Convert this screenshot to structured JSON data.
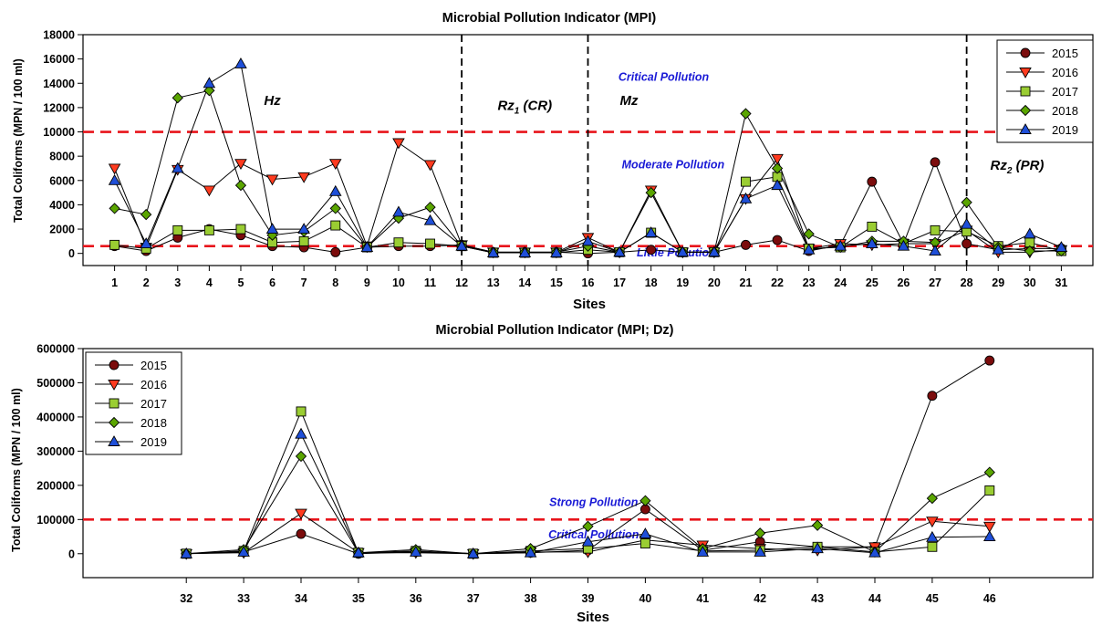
{
  "figure_title": "Microbial Pollution Indicator (MPI)",
  "chart_data": [
    {
      "type": "line",
      "title": "Microbial Pollution Indicator (MPI)",
      "xlabel": "Sites",
      "ylabel": "Total Coliforms (MPN / 100 ml)",
      "ylim": [
        -1000,
        18000
      ],
      "yticks": [
        0,
        2000,
        4000,
        6000,
        8000,
        10000,
        12000,
        14000,
        16000,
        18000
      ],
      "ytick_labels": [
        "0",
        "2000",
        "4000",
        "6000",
        "8000",
        "10000",
        "12000",
        "14000",
        "16000",
        "18000"
      ],
      "x": [
        1,
        2,
        3,
        4,
        5,
        6,
        7,
        8,
        9,
        10,
        11,
        12,
        13,
        14,
        15,
        16,
        17,
        18,
        19,
        20,
        21,
        22,
        23,
        24,
        25,
        26,
        27,
        28,
        29,
        30,
        31
      ],
      "grid": false,
      "legend_position": "top-right",
      "series": [
        {
          "name": "2015",
          "color": "#7b0c0c",
          "marker": "circle",
          "values": [
            600,
            200,
            1300,
            2000,
            1500,
            600,
            500,
            100,
            500,
            600,
            600,
            700,
            100,
            100,
            100,
            0,
            100,
            300,
            100,
            100,
            700,
            1100,
            200,
            700,
            5900,
            800,
            7500,
            800,
            300,
            400,
            400
          ]
        },
        {
          "name": "2016",
          "color": "#ff3b1f",
          "marker": "triangle-down",
          "values": [
            7000,
            500,
            6900,
            5200,
            7400,
            6100,
            6300,
            7400,
            600,
            9100,
            7300,
            700,
            100,
            100,
            100,
            1300,
            100,
            5200,
            100,
            100,
            4500,
            7800,
            400,
            800,
            700,
            800,
            800,
            1900,
            100,
            100,
            300
          ]
        },
        {
          "name": "2017",
          "color": "#9acd32",
          "marker": "square",
          "values": [
            700,
            400,
            1900,
            1900,
            2000,
            900,
            1000,
            2300,
            500,
            900,
            800,
            600,
            50,
            50,
            50,
            300,
            100,
            1700,
            100,
            100,
            5900,
            6300,
            400,
            500,
            2200,
            800,
            1900,
            1800,
            600,
            900,
            200
          ]
        },
        {
          "name": "2018",
          "color": "#5aa500",
          "marker": "diamond",
          "values": [
            3700,
            3200,
            12800,
            13400,
            5600,
            1500,
            1800,
            3700,
            500,
            2900,
            3800,
            600,
            100,
            100,
            100,
            600,
            100,
            5000,
            100,
            100,
            11500,
            7000,
            1600,
            500,
            1000,
            1000,
            900,
            4200,
            500,
            200,
            200
          ]
        },
        {
          "name": "2019",
          "color": "#1f4fd8",
          "marker": "triangle-up",
          "values": [
            6000,
            800,
            7000,
            14000,
            15600,
            2000,
            2000,
            5100,
            500,
            3400,
            2700,
            600,
            50,
            50,
            50,
            1000,
            100,
            1700,
            100,
            100,
            4500,
            5600,
            300,
            600,
            800,
            600,
            200,
            2400,
            300,
            1600,
            500
          ]
        }
      ],
      "thresholds": [
        10000,
        600
      ],
      "zone_dividers": [
        12,
        16,
        28
      ],
      "annotations": [
        {
          "text": "Hz",
          "x": 6,
          "y": 12200
        },
        {
          "text": "Rz",
          "sub": "1",
          "suffix": " (CR)",
          "x": 14,
          "y": 11800
        },
        {
          "text": "Mz",
          "x": 17.3,
          "y": 12200
        },
        {
          "text": "Rz",
          "sub": "2",
          "suffix": " (PR)",
          "x": 29.6,
          "y": 6900
        },
        {
          "text": "Critical Pollution",
          "x": 18.4,
          "y": 14200,
          "color": "#1a1ad6"
        },
        {
          "text": "Moderate Pollution",
          "x": 18.7,
          "y": 7000,
          "color": "#1a1ad6"
        },
        {
          "text": "Little Pollution",
          "x": 18.8,
          "y": -250,
          "color": "#1a1ad6"
        }
      ]
    },
    {
      "type": "line",
      "title": "Microbial Pollution Indicator (MPI; Dz)",
      "xlabel": "Sites",
      "ylabel": "Total Coliforms (MPN / 100 ml)",
      "ylim": [
        -70000,
        600000
      ],
      "yticks": [
        0,
        100000,
        200000,
        300000,
        400000,
        500000,
        600000
      ],
      "ytick_labels": [
        "0",
        "100000",
        "200000",
        "300000",
        "400000",
        "500000",
        "600000"
      ],
      "x": [
        32,
        33,
        34,
        35,
        36,
        37,
        38,
        39,
        40,
        41,
        42,
        43,
        44,
        45,
        46
      ],
      "grid": false,
      "legend_position": "top-left",
      "series": [
        {
          "name": "2015",
          "color": "#7b0c0c",
          "marker": "circle",
          "values": [
            0,
            5000,
            58000,
            0,
            5000,
            0,
            3000,
            10000,
            130000,
            10000,
            35000,
            20000,
            20000,
            462000,
            565000
          ]
        },
        {
          "name": "2016",
          "color": "#ff3b1f",
          "marker": "triangle-down",
          "values": [
            0,
            3000,
            118000,
            3000,
            3000,
            0,
            5000,
            5000,
            40000,
            25000,
            15000,
            10000,
            20000,
            95000,
            80000
          ]
        },
        {
          "name": "2017",
          "color": "#9acd32",
          "marker": "square",
          "values": [
            0,
            8000,
            416000,
            3000,
            8000,
            0,
            8000,
            15000,
            30000,
            8000,
            10000,
            20000,
            5000,
            20000,
            185000
          ]
        },
        {
          "name": "2018",
          "color": "#5aa500",
          "marker": "diamond",
          "values": [
            0,
            12000,
            285000,
            3000,
            12000,
            0,
            15000,
            80000,
            155000,
            15000,
            60000,
            83000,
            5000,
            162000,
            238000
          ]
        },
        {
          "name": "2019",
          "color": "#1f4fd8",
          "marker": "triangle-up",
          "values": [
            0,
            5000,
            350000,
            3000,
            5000,
            0,
            3000,
            35000,
            58000,
            5000,
            5000,
            15000,
            3000,
            48000,
            50000
          ]
        }
      ],
      "thresholds": [
        100000
      ],
      "annotations": [
        {
          "text": "Strong Pollution",
          "x": 39.1,
          "y": 140000,
          "color": "#1a1ad6"
        },
        {
          "text": "Critical Pollution",
          "x": 39.1,
          "y": 45000,
          "color": "#1a1ad6"
        }
      ]
    }
  ]
}
